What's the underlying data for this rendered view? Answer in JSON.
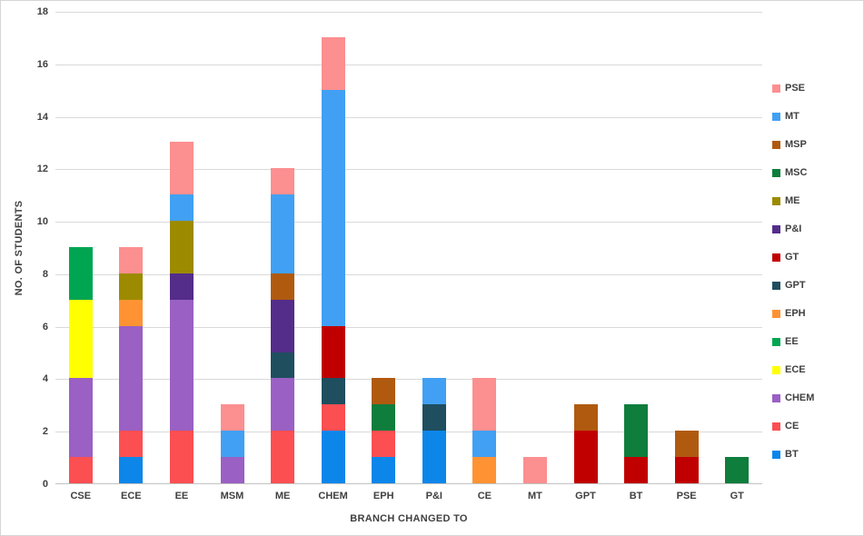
{
  "chart_data": {
    "type": "bar",
    "stacked": true,
    "title": "",
    "xlabel": "BRANCH CHANGED TO",
    "ylabel": "NO. OF STUDENTS",
    "ylim": [
      0,
      18
    ],
    "yticks": [
      0,
      2,
      4,
      6,
      8,
      10,
      12,
      14,
      16,
      18
    ],
    "grid": true,
    "legend_position": "right",
    "categories": [
      "CSE",
      "ECE",
      "EE",
      "MSM",
      "ME",
      "CHEM",
      "EPH",
      "P&I",
      "CE",
      "MT",
      "GPT",
      "BT",
      "PSE",
      "GT"
    ],
    "series": [
      {
        "name": "BT",
        "color": "#0d86ea",
        "values": [
          0,
          1,
          0,
          0,
          0,
          2,
          1,
          2,
          0,
          0,
          0,
          0,
          0,
          0
        ]
      },
      {
        "name": "CE",
        "color": "#fc4f52",
        "values": [
          1,
          1,
          2,
          0,
          2,
          1,
          1,
          0,
          0,
          0,
          0,
          0,
          0,
          0
        ]
      },
      {
        "name": "CHEM",
        "color": "#9a60c4",
        "values": [
          3,
          4,
          5,
          1,
          2,
          0,
          0,
          0,
          0,
          0,
          0,
          0,
          0,
          0
        ]
      },
      {
        "name": "ECE",
        "color": "#ffff00",
        "values": [
          3,
          0,
          0,
          0,
          0,
          0,
          0,
          0,
          0,
          0,
          0,
          0,
          0,
          0
        ]
      },
      {
        "name": "EE",
        "color": "#00a551",
        "values": [
          2,
          0,
          0,
          0,
          0,
          0,
          0,
          0,
          0,
          0,
          0,
          0,
          0,
          0
        ]
      },
      {
        "name": "EPH",
        "color": "#ff9333",
        "values": [
          0,
          1,
          0,
          0,
          0,
          0,
          0,
          0,
          1,
          0,
          0,
          0,
          0,
          0
        ]
      },
      {
        "name": "GPT",
        "color": "#1f4e5f",
        "values": [
          0,
          0,
          0,
          0,
          1,
          1,
          0,
          1,
          0,
          0,
          0,
          0,
          0,
          0
        ]
      },
      {
        "name": "GT",
        "color": "#c00000",
        "values": [
          0,
          0,
          0,
          0,
          0,
          2,
          0,
          0,
          0,
          0,
          2,
          1,
          1,
          0
        ]
      },
      {
        "name": "P&I",
        "color": "#542d8a",
        "values": [
          0,
          0,
          1,
          0,
          2,
          0,
          0,
          0,
          0,
          0,
          0,
          0,
          0,
          0
        ]
      },
      {
        "name": "ME",
        "color": "#9c8b00",
        "values": [
          0,
          1,
          2,
          0,
          0,
          0,
          0,
          0,
          0,
          0,
          0,
          0,
          0,
          0
        ]
      },
      {
        "name": "MSC",
        "color": "#0f7d3c",
        "values": [
          0,
          0,
          0,
          0,
          0,
          0,
          1,
          0,
          0,
          0,
          0,
          2,
          0,
          1
        ]
      },
      {
        "name": "MSP",
        "color": "#b05a10",
        "values": [
          0,
          0,
          0,
          0,
          1,
          0,
          1,
          0,
          0,
          0,
          1,
          0,
          1,
          0
        ]
      },
      {
        "name": "MT",
        "color": "#41a0f3",
        "values": [
          0,
          0,
          1,
          1,
          3,
          9,
          0,
          1,
          1,
          0,
          0,
          0,
          0,
          0
        ]
      },
      {
        "name": "PSE",
        "color": "#fc8f90",
        "values": [
          0,
          1,
          2,
          1,
          1,
          2,
          0,
          0,
          2,
          1,
          0,
          0,
          0,
          0
        ]
      }
    ],
    "legend_order_top_to_bottom": [
      "PSE",
      "MT",
      "MSP",
      "MSC",
      "ME",
      "P&I",
      "GT",
      "GPT",
      "EPH",
      "EE",
      "ECE",
      "CHEM",
      "CE",
      "BT"
    ]
  },
  "style": {
    "gridline_color": "#d9d9d9",
    "axis_line_color": "#c3c3c3",
    "label_color": "#404040",
    "background": "#ffffff"
  }
}
